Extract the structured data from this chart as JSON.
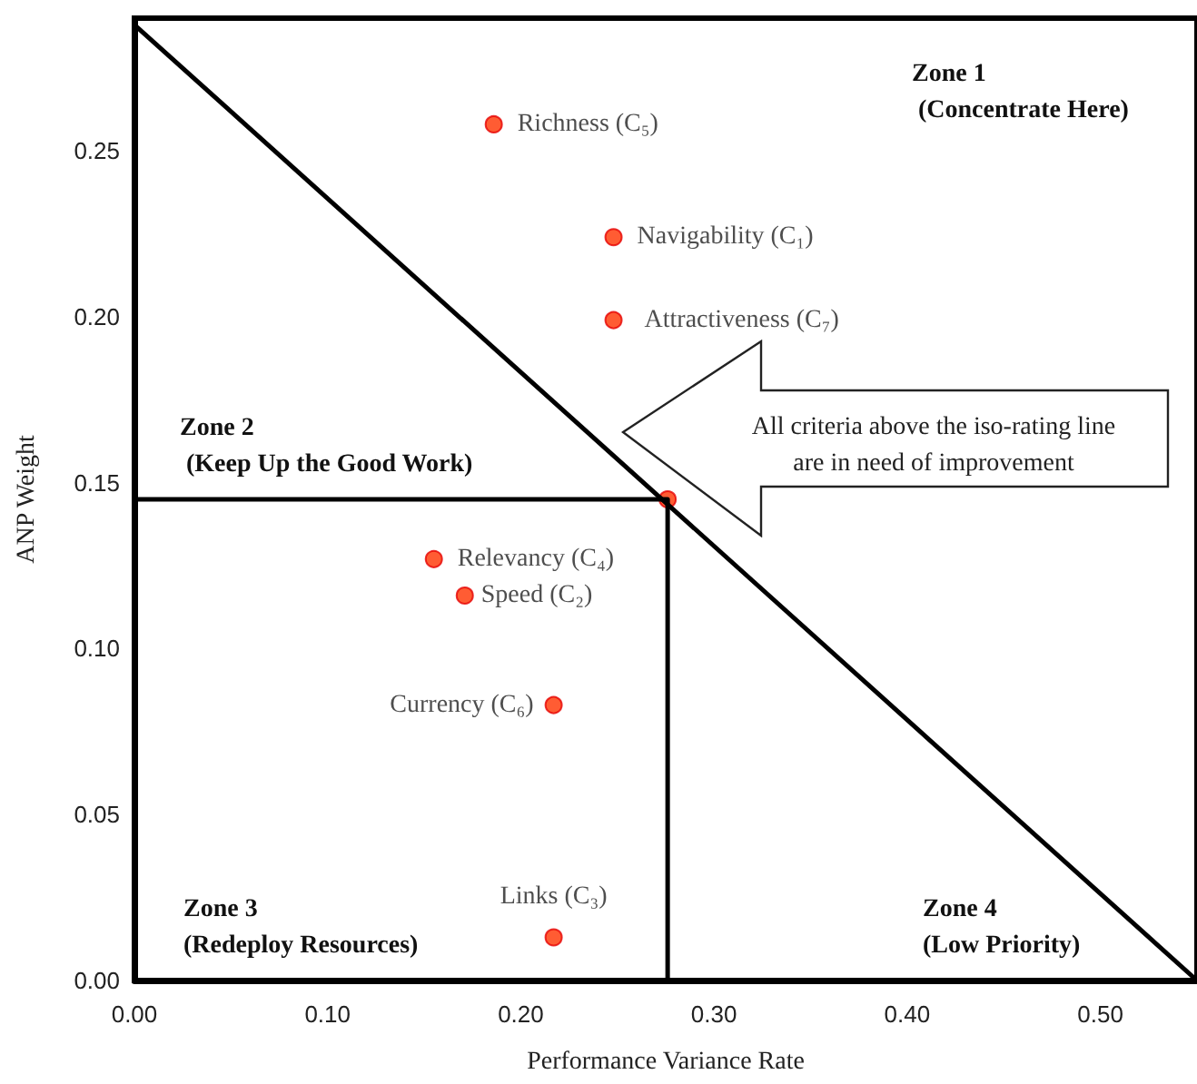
{
  "chart_data": {
    "type": "scatter",
    "xlabel": "Performance Variance Rate",
    "ylabel": "ANP Weight",
    "xlim": [
      0,
      0.55
    ],
    "xticks": [
      {
        "value": 0,
        "label": "0.00"
      },
      {
        "value": 0.1,
        "label": "0.10"
      },
      {
        "value": 0.2,
        "label": "0.20"
      },
      {
        "value": 0.3,
        "label": "0.30"
      },
      {
        "value": 0.4,
        "label": "0.40"
      },
      {
        "value": 0.5,
        "label": "0.50"
      }
    ],
    "ylim": [
      0,
      0.29
    ],
    "yticks": [
      {
        "value": 0,
        "label": "0.00"
      },
      {
        "value": 0.05,
        "label": "0.05"
      },
      {
        "value": 0.1,
        "label": "0.10"
      },
      {
        "value": 0.15,
        "label": "0.15"
      },
      {
        "value": 0.2,
        "label": "0.20"
      },
      {
        "value": 0.25,
        "label": "0.25"
      }
    ],
    "series": [
      {
        "color": "#ff3300",
        "marker": "circle",
        "x": [
          0.186,
          0.248,
          0.248,
          0.155,
          0.171,
          0.217,
          0.217,
          0.276
        ],
        "values": [
          0.258,
          0.224,
          0.199,
          0.127,
          0.116,
          0.083,
          0.013,
          0.145
        ],
        "value_labels": [
          "Richness (C₅)",
          "Navigability (C₁)",
          "Attractiveness (C₇)",
          "Relevancy (C₄)",
          "Speed (C₂)",
          "Currency (C₆)",
          "Links (C₃)",
          null
        ]
      },
      {
        "type": "line",
        "color": "#000000",
        "marker": "none",
        "x": [
          0,
          0.55
        ],
        "values": [
          0.288,
          0
        ]
      },
      {
        "type": "line",
        "color": "#000000",
        "marker": "none",
        "x": [
          0,
          0.276,
          0.276
        ],
        "values": [
          0.145,
          0.145,
          0
        ]
      }
    ],
    "annotations": [
      "Zone 1\n (Concentrate Here)",
      "Zone 2\n (Keep Up the Good Work)",
      "Zone 3\n(Redeploy Resources)",
      "Zone 4\n(Low Priority)",
      "All criteria above the iso-rating line\nare in need of improvement"
    ],
    "grid": false
  }
}
